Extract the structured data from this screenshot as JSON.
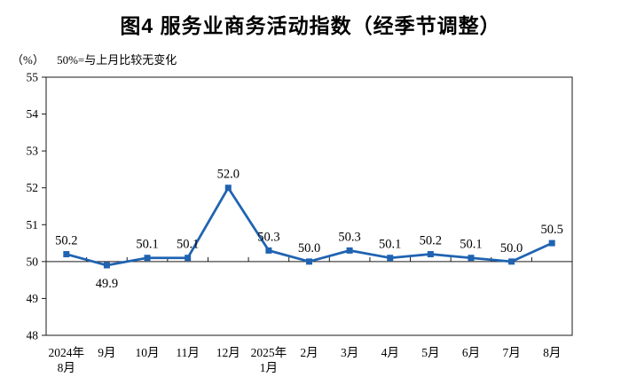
{
  "chart_data": {
    "type": "line",
    "title": "图4 服务业商务活动指数（经季节调整）",
    "unit_label": "（%）",
    "note": "50%=与上月比较无变化",
    "categories": [
      "2024年\n8月",
      "9月",
      "10月",
      "11月",
      "12月",
      "2025年\n1月",
      "2月",
      "3月",
      "4月",
      "5月",
      "6月",
      "7月",
      "8月"
    ],
    "values": [
      50.2,
      49.9,
      50.1,
      50.1,
      52.0,
      50.3,
      50.0,
      50.3,
      50.1,
      50.2,
      50.1,
      50.0,
      50.5
    ],
    "point_labels": [
      "50.2",
      "49.9",
      "50.1",
      "50.1",
      "52.0",
      "50.3",
      "50.0",
      "50.3",
      "50.1",
      "50.2",
      "50.1",
      "50.0",
      "50.5"
    ],
    "label_positions": [
      "above",
      "below",
      "above",
      "above",
      "above",
      "above",
      "above",
      "above",
      "above",
      "above",
      "above",
      "above",
      "above"
    ],
    "ylim": [
      48,
      55
    ],
    "ytick_step": 1,
    "reference_line": 50,
    "xlabel": "",
    "ylabel": "（%）",
    "grid": false,
    "legend": false,
    "colors": {
      "line": "#1F63B2",
      "marker": "#1F63B2",
      "axis": "#1a1a1a",
      "text": "#000000"
    }
  }
}
